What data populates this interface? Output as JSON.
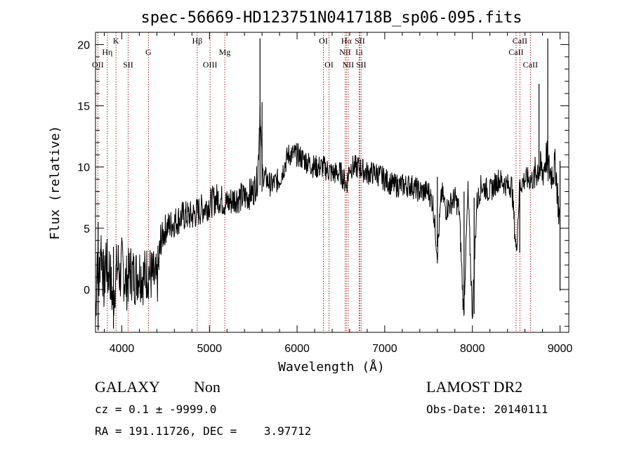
{
  "chart_data": {
    "type": "line",
    "title": "spec-56669-HD123751N041718B_sp06-095.fits",
    "xlabel": "Wavelength (Å)",
    "ylabel": "Flux (relative)",
    "xlim": [
      3700,
      9100
    ],
    "ylim": [
      -3.5,
      21
    ],
    "xticks": [
      4000,
      5000,
      6000,
      7000,
      8000,
      9000
    ],
    "yticks": [
      0,
      5,
      10,
      15,
      20
    ],
    "grid": false,
    "line_color": "#000000",
    "marker_color": "#b22222",
    "spectrum": {
      "x": [
        3700,
        3720,
        3740,
        3760,
        3780,
        3800,
        3820,
        3840,
        3860,
        3880,
        3900,
        3920,
        3940,
        3960,
        3980,
        4000,
        4050,
        4100,
        4150,
        4200,
        4250,
        4300,
        4350,
        4400,
        4450,
        4500,
        4600,
        4700,
        4800,
        4900,
        5000,
        5100,
        5200,
        5300,
        5400,
        5500,
        5550,
        5577,
        5600,
        5650,
        5700,
        5800,
        5900,
        6000,
        6100,
        6200,
        6300,
        6400,
        6500,
        6563,
        6600,
        6700,
        6800,
        6900,
        7000,
        7100,
        7200,
        7300,
        7400,
        7500,
        7550,
        7600,
        7650,
        7700,
        7750,
        7800,
        7850,
        7900,
        7950,
        8000,
        8050,
        8100,
        8200,
        8300,
        8400,
        8450,
        8500,
        8540,
        8600,
        8700,
        8750,
        8800,
        8850,
        8860,
        8900,
        8950,
        9000
      ],
      "y": [
        -2.5,
        3,
        0.5,
        4,
        2,
        0,
        3,
        1,
        2,
        0,
        -1,
        0.5,
        1.5,
        2,
        1,
        2,
        0.5,
        1.5,
        1,
        1.5,
        1,
        1.5,
        1,
        0.5,
        4,
        5,
        5.5,
        6,
        6,
        6.5,
        7,
        7.5,
        7,
        7.5,
        7.5,
        8,
        9,
        15,
        9.5,
        9,
        8.5,
        9,
        11,
        11,
        10.5,
        10,
        10,
        9.5,
        9.5,
        8.5,
        10,
        10,
        9.5,
        9.5,
        9,
        8.5,
        8.5,
        8.5,
        8,
        8,
        7,
        3,
        8,
        6.5,
        7,
        7.5,
        6.5,
        -2,
        8,
        -2,
        7,
        8.5,
        8,
        9,
        8.5,
        8.5,
        3,
        8.5,
        9,
        9,
        10,
        9.5,
        11,
        10,
        9.5,
        10,
        5
      ]
    },
    "spikes": [
      {
        "x": 3730,
        "min": -3.3,
        "max": 5.5
      },
      {
        "x": 3905,
        "min": -3.2,
        "max": 3.5
      },
      {
        "x": 5577,
        "min": 8.5,
        "max": 20.5
      },
      {
        "x": 5600,
        "min": 8.0,
        "max": 15.3
      },
      {
        "x": 7600,
        "min": 3.5,
        "max": 9.2
      },
      {
        "x": 7905,
        "min": -2.0,
        "max": 8.0
      },
      {
        "x": 8020,
        "min": -2.0,
        "max": 7.5
      },
      {
        "x": 8540,
        "min": 3.0,
        "max": 9.0
      },
      {
        "x": 8760,
        "min": 9.0,
        "max": 16.8
      },
      {
        "x": 8860,
        "min": 9.5,
        "max": 20.5
      },
      {
        "x": 9000,
        "min": -0.1,
        "max": 10.5
      }
    ],
    "lines": [
      {
        "name": "OII",
        "x": 3727,
        "row": 3
      },
      {
        "name": "Hη",
        "x": 3835,
        "row": 2
      },
      {
        "name": "K",
        "x": 3934,
        "row": 1
      },
      {
        "name": "SII",
        "x": 4072,
        "row": 3
      },
      {
        "name": "G",
        "x": 4304,
        "row": 2
      },
      {
        "name": "Hβ",
        "x": 4861,
        "row": 1
      },
      {
        "name": "OIII",
        "x": 5007,
        "row": 3
      },
      {
        "name": "Mg",
        "x": 5175,
        "row": 2
      },
      {
        "name": "OI",
        "x": 6300,
        "row": 1
      },
      {
        "name": "OI",
        "x": 6364,
        "row": 3
      },
      {
        "name": "NII",
        "x": 6548,
        "row": 2
      },
      {
        "name": "Hα",
        "x": 6563,
        "row": 1
      },
      {
        "name": "NII",
        "x": 6583,
        "row": 3
      },
      {
        "name": "Li",
        "x": 6708,
        "row": 2
      },
      {
        "name": "SII",
        "x": 6716,
        "row": 1
      },
      {
        "name": "SII",
        "x": 6731,
        "row": 3
      },
      {
        "name": "CaII",
        "x": 8498,
        "row": 2
      },
      {
        "name": "CaII",
        "x": 8542,
        "row": 1
      },
      {
        "name": "CaII",
        "x": 8662,
        "row": 3
      }
    ]
  },
  "info": {
    "class_label": "GALAXY",
    "subclass_label": "Non",
    "survey_label": "LAMOST DR2",
    "cz_text": "cz = 0.1 ± -9999.0",
    "obs_date_text": "Obs-Date: 20140111",
    "radec_text": "RA = 191.11726, DEC =    3.97712"
  }
}
